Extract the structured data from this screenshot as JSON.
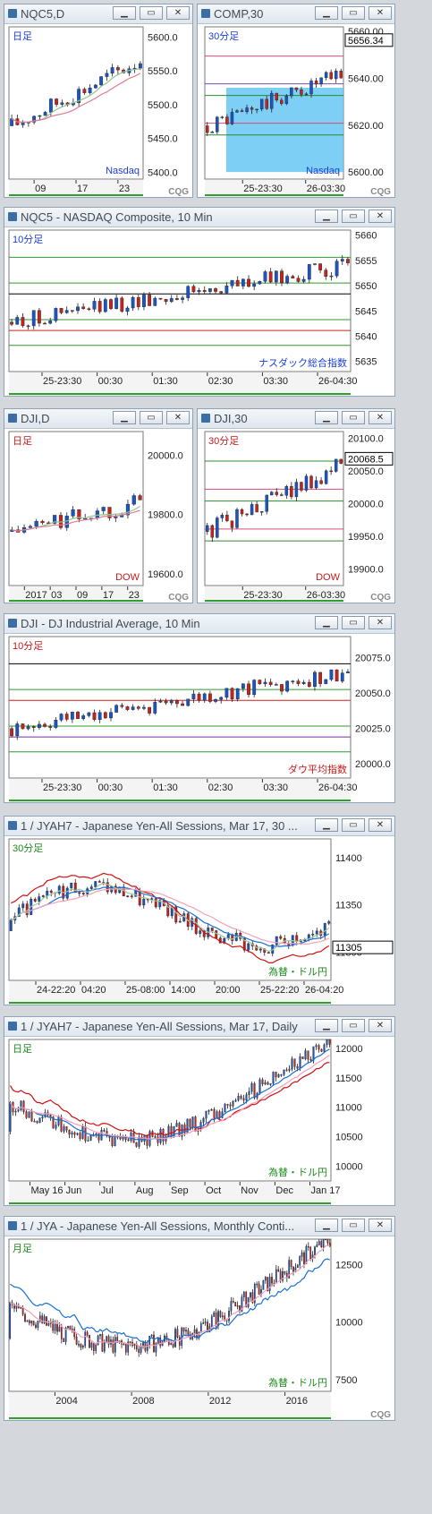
{
  "colors": {
    "up": "#1a55c6",
    "down": "#c7221c",
    "bg": "#ffffff"
  },
  "windows": [
    {
      "title": "NQC5,D",
      "brand": "CQG",
      "chart_data": {
        "type": "candlestick",
        "period_label": "日足",
        "symbol_label": "Nasdaq",
        "yticks": [
          "5600.0",
          "5550.0",
          "5500.0",
          "5450.0",
          "5400.0"
        ],
        "ylim": [
          5390,
          5615
        ],
        "xticks": [
          "09",
          "17",
          "23"
        ]
      }
    },
    {
      "title": "COMP,30",
      "brand": "CQG",
      "chart_data": {
        "type": "candlestick",
        "period_label": "30分足",
        "symbol_label": "Nasdaq",
        "yticks": [
          "5660.00",
          "5640.00",
          "5620.00",
          "5600.00"
        ],
        "last_price": "5656.34",
        "ylim": [
          5597,
          5662
        ],
        "xticks": [
          "25-23:30",
          "26-03:30"
        ]
      }
    },
    {
      "title": "NQC5 - NASDAQ Composite, 10 Min",
      "chart_data": {
        "type": "candlestick",
        "period_label": "10分足",
        "symbol_label": "ナスダック総合指数",
        "yticks": [
          "5660",
          "5655",
          "5650",
          "5645",
          "5640",
          "5635"
        ],
        "ylim": [
          5633,
          5661
        ],
        "xticks": [
          "25-23:30",
          "00:30",
          "01:30",
          "02:30",
          "03:30",
          "26-04:30"
        ]
      }
    },
    {
      "title": "DJI,D",
      "brand": "CQG",
      "chart_data": {
        "type": "candlestick",
        "period_label": "日足",
        "symbol_label": "DOW",
        "yticks": [
          "20000.0",
          "19800.0",
          "19600.0"
        ],
        "ylim": [
          19560,
          20080
        ],
        "xticks": [
          "2017",
          "03",
          "09",
          "17",
          "23"
        ]
      }
    },
    {
      "title": "DJI,30",
      "brand": "CQG",
      "chart_data": {
        "type": "candlestick",
        "period_label": "30分足",
        "symbol_label": "DOW",
        "yticks": [
          "20100.0",
          "20050.0",
          "20000.0",
          "19950.0",
          "19900.0"
        ],
        "last_price": "20068.5",
        "ylim": [
          19875,
          20110
        ],
        "xticks": [
          "25-23:30",
          "26-03:30"
        ]
      }
    },
    {
      "title": "DJI - DJ Industrial Average, 10 Min",
      "chart_data": {
        "type": "candlestick",
        "period_label": "10分足",
        "symbol_label": "ダウ平均指数",
        "yticks": [
          "20075.0",
          "20050.0",
          "20025.0",
          "20000.0"
        ],
        "ylim": [
          19990,
          20090
        ],
        "xticks": [
          "25-23:30",
          "00:30",
          "01:30",
          "02:30",
          "03:30",
          "26-04:30"
        ]
      }
    },
    {
      "title": "1 / JYAH7 - Japanese Yen-All Sessions, Mar 17, 30 ...",
      "chart_data": {
        "type": "candlestick",
        "period_label": "30分足",
        "symbol_label": "為替・ドル円",
        "yticks": [
          "11400",
          "11350",
          "11300"
        ],
        "last_price": "11305",
        "ylim": [
          11270,
          11420
        ],
        "xticks": [
          "24-22:20",
          "04:20",
          "25-08:00",
          "14:00",
          "20:00",
          "25-22:20",
          "26-04:20"
        ]
      }
    },
    {
      "title": "1 / JYAH7 - Japanese Yen-All Sessions, Mar 17, Daily",
      "chart_data": {
        "type": "candlestick",
        "period_label": "日足",
        "symbol_label": "為替・ドル円",
        "yticks": [
          "12000",
          "11500",
          "11000",
          "10500",
          "10000"
        ],
        "ylim": [
          9750,
          12150
        ],
        "xticks": [
          "May 16",
          "Jun",
          "Jul",
          "Aug",
          "Sep",
          "Oct",
          "Nov",
          "Dec",
          "Jan 17"
        ]
      }
    },
    {
      "title": "1 / JYA - Japanese Yen-All Sessions, Monthly Conti...",
      "brand": "CQG",
      "chart_data": {
        "type": "candlestick",
        "period_label": "月足",
        "symbol_label": "為替・ドル円",
        "yticks": [
          "12500",
          "10000",
          "7500"
        ],
        "ylim": [
          7000,
          13600
        ],
        "xticks": [
          "2004",
          "2008",
          "2012",
          "2016"
        ]
      }
    }
  ]
}
